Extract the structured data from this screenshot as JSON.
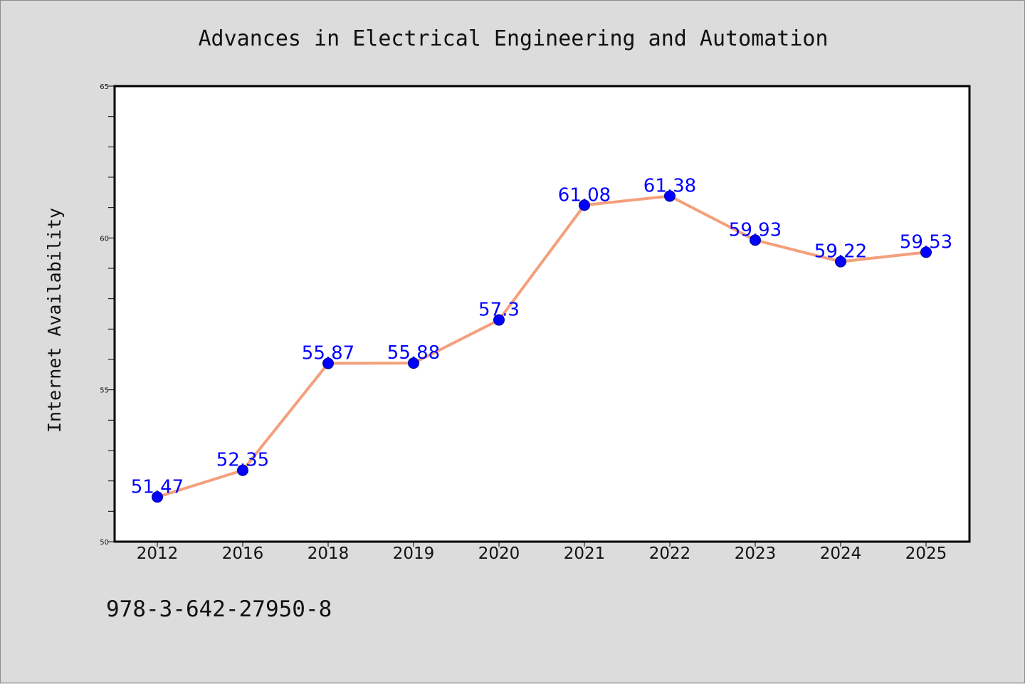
{
  "footer": {
    "isbn": "978-3-642-27950-8"
  },
  "colors": {
    "background": "#dcdcdc",
    "plot_background": "#ffffff",
    "line": "#f4a07c",
    "marker": "#0000ff",
    "data_label": "#0000ff"
  },
  "chart_data": {
    "type": "line",
    "title": "Advances in Electrical Engineering and Automation",
    "xlabel": "",
    "ylabel": "Internet Availability",
    "categories": [
      "2012",
      "2016",
      "2018",
      "2019",
      "2020",
      "2021",
      "2022",
      "2023",
      "2024",
      "2025"
    ],
    "series": [
      {
        "values": [
          51.47,
          52.35,
          55.87,
          55.88,
          57.3,
          61.08,
          61.38,
          59.93,
          59.22,
          59.53
        ],
        "labels": [
          "51.47",
          "52.35",
          "55.87",
          "55.88",
          "57.3",
          "61.08",
          "61.38",
          "59.93",
          "59.22",
          "59.53"
        ]
      }
    ],
    "ylim": [
      50,
      65
    ],
    "yticks": [
      "50",
      "55",
      "60",
      "65"
    ],
    "grid": false,
    "legend": "none"
  }
}
